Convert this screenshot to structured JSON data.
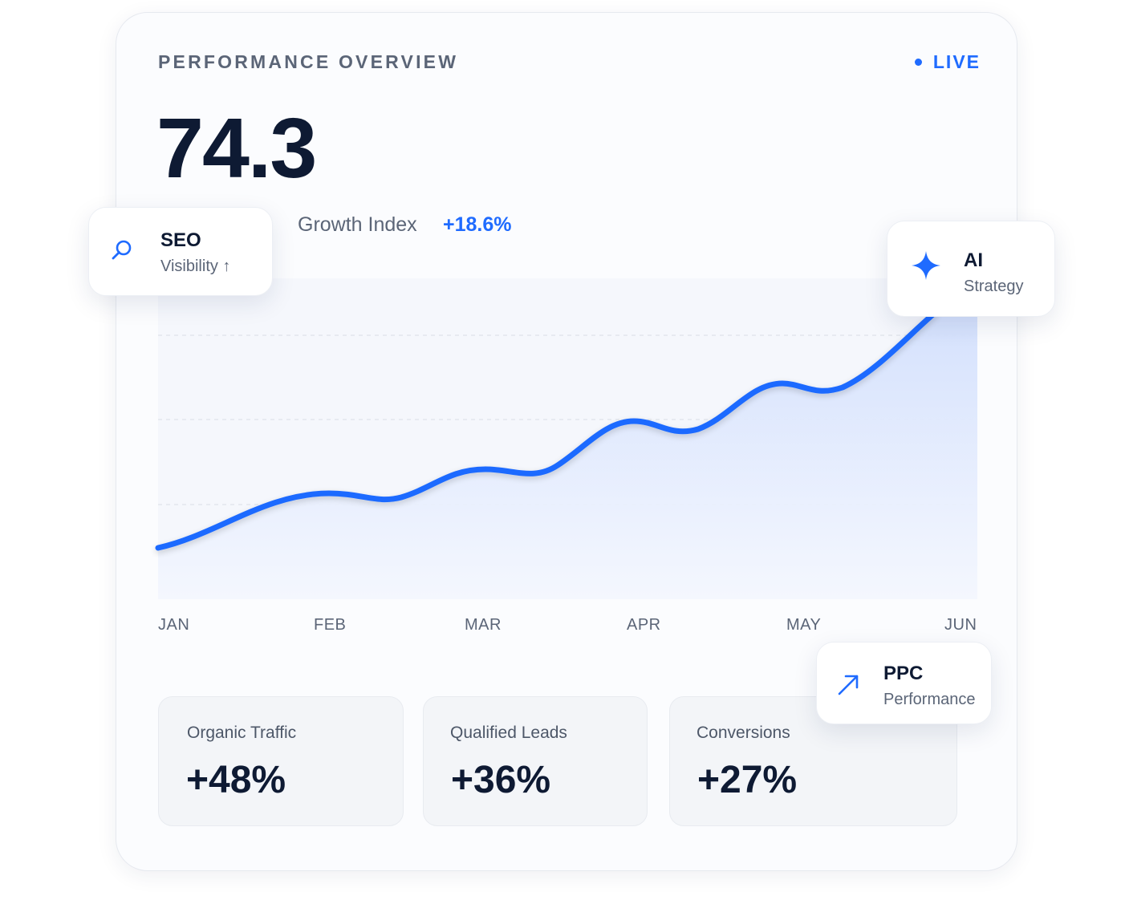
{
  "header": {
    "title": "PERFORMANCE OVERVIEW",
    "status": "LIVE"
  },
  "metric": {
    "value": "74.3",
    "label": "Growth Index",
    "change": "+18.6%"
  },
  "badges": {
    "seo": {
      "title": "SEO",
      "subtitle": "Visibility ↑"
    },
    "ai": {
      "title": "AI",
      "subtitle": "Strategy"
    },
    "ppc": {
      "title": "PPC",
      "subtitle": "Performance"
    }
  },
  "stats": [
    {
      "label": "Organic Traffic",
      "value": "+48%"
    },
    {
      "label": "Qualified Leads",
      "value": "+36%"
    },
    {
      "label": "Conversions",
      "value": "+27%"
    }
  ],
  "chart_data": {
    "type": "area",
    "categories": [
      "JAN",
      "FEB",
      "MAR",
      "APR",
      "MAY",
      "JUN"
    ],
    "series": [
      {
        "values": [
          20,
          35,
          45,
          57,
          67,
          100
        ]
      }
    ],
    "grid": "horizontal dashed",
    "legend": "none",
    "colors": {
      "line": "#1f6bff",
      "fill": "#dde7fd"
    }
  },
  "colors": {
    "accent": "#1f6bff",
    "text_dark": "#0e1a33",
    "text_muted": "#5b6577"
  },
  "icons": {
    "seo": "search-icon",
    "ai": "sparkle-icon",
    "ppc": "arrow-up-right-icon"
  }
}
